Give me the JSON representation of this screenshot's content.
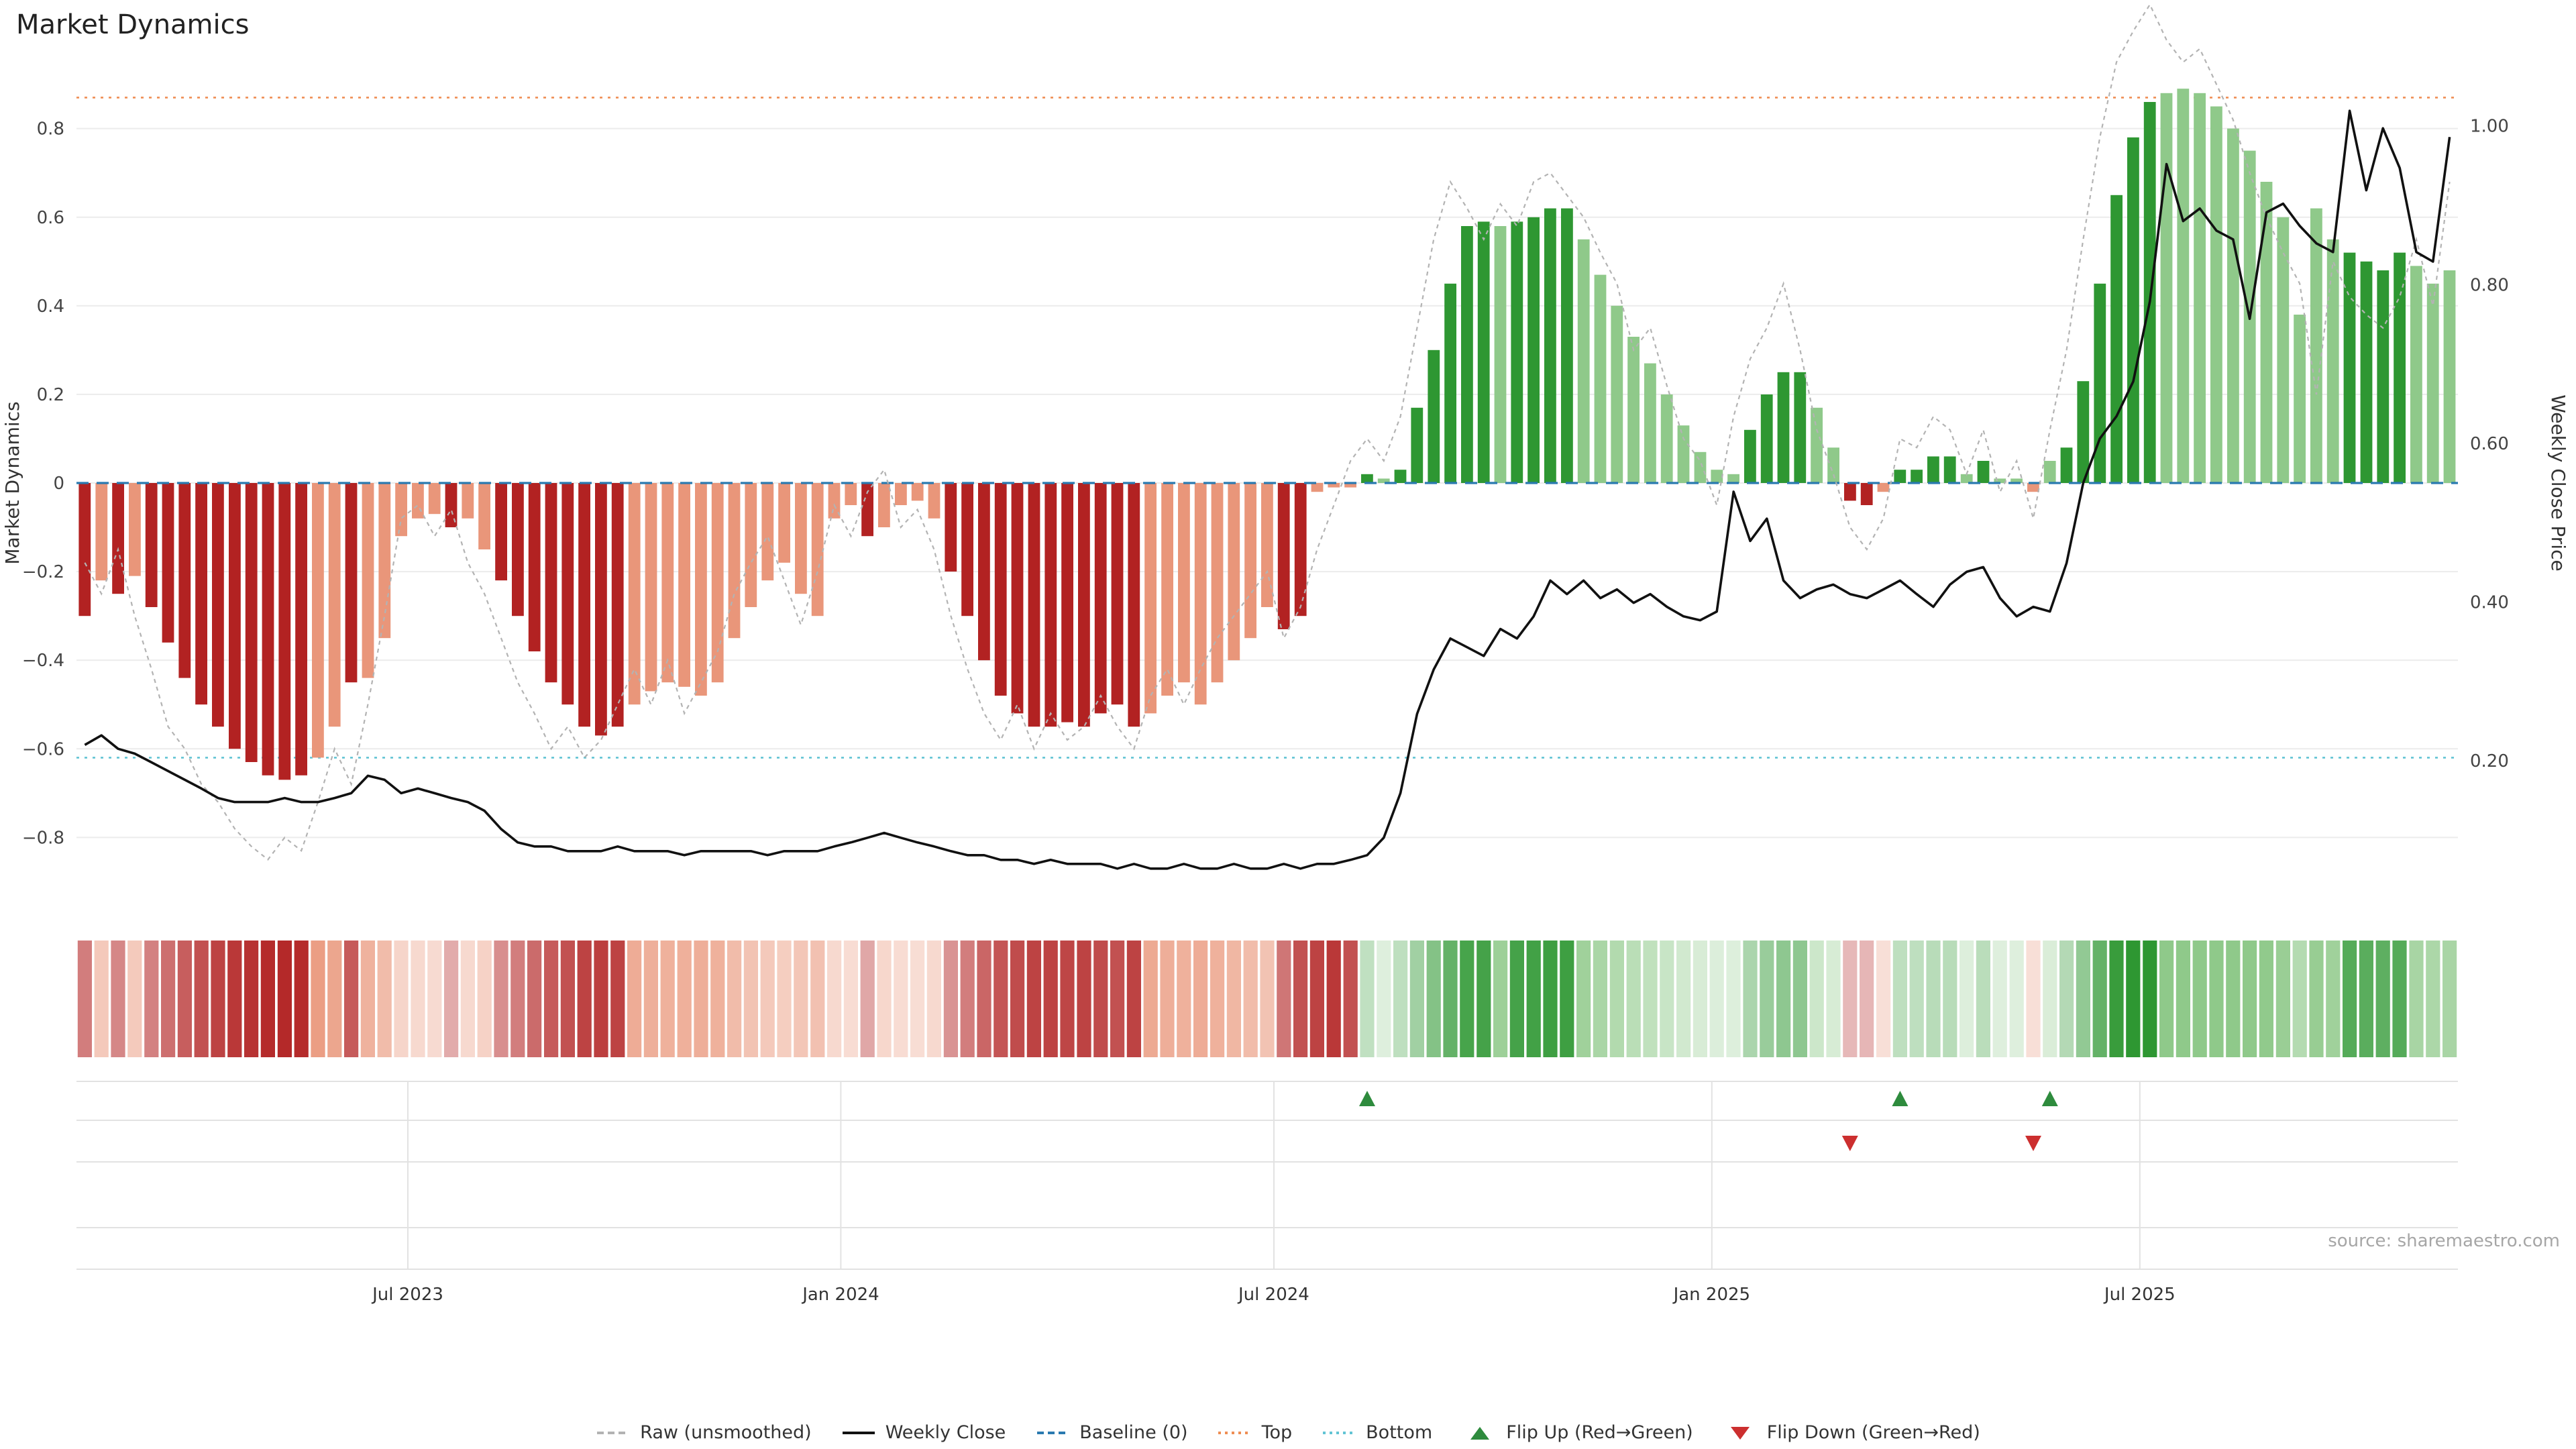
{
  "title": "Market Dynamics",
  "source": "source: sharemaestro.com",
  "colors": {
    "bar_dark_red": "#b22222",
    "bar_light_red": "#e9967a",
    "bar_dark_green": "#2e9732",
    "bar_light_green": "#8fc98a",
    "raw_line": "#b3b3b3",
    "close_line": "#111111",
    "baseline": "#2a7ab0",
    "top_line": "#ef8e54",
    "bottom_line": "#62c4d4",
    "flip_up": "#2e8b3d",
    "flip_down": "#cc2f2f",
    "grid": "#ececec",
    "panel_grid": "#e2e2e2",
    "source_text": "#a6a6a6"
  },
  "chart_data": {
    "type": "bar+line",
    "x_unit": "week",
    "weeks": 143,
    "x_ticks": [
      {
        "i": 19.4,
        "label": "Jul 2023"
      },
      {
        "i": 45.4,
        "label": "Jan 2024"
      },
      {
        "i": 71.4,
        "label": "Jul 2024"
      },
      {
        "i": 97.7,
        "label": "Jan 2025"
      },
      {
        "i": 123.4,
        "label": "Jul 2025"
      }
    ],
    "left_axis": {
      "label": "Market Dynamics",
      "range": [
        -0.96,
        0.96
      ],
      "ticks": [
        {
          "v": 0.8,
          "label": "0.8"
        },
        {
          "v": 0.6,
          "label": "0.6"
        },
        {
          "v": 0.4,
          "label": "0.4"
        },
        {
          "v": 0.2,
          "label": "0.2"
        },
        {
          "v": 0.0,
          "label": "0"
        },
        {
          "v": -0.2,
          "label": "−0.2"
        },
        {
          "v": -0.4,
          "label": "−0.4"
        },
        {
          "v": -0.6,
          "label": "−0.6"
        },
        {
          "v": -0.8,
          "label": "−0.8"
        }
      ]
    },
    "right_axis": {
      "label": "Weekly Close Price",
      "range": [
        0.014,
        1.086
      ],
      "ticks": [
        {
          "v": 0.2,
          "label": "0.20"
        },
        {
          "v": 0.4,
          "label": "0.40"
        },
        {
          "v": 0.6,
          "label": "0.60"
        },
        {
          "v": 0.8,
          "label": "0.80"
        },
        {
          "v": 1.0,
          "label": "1.00"
        }
      ]
    },
    "reference_lines": {
      "baseline": 0,
      "top": 0.87,
      "bottom": -0.62
    },
    "series": [
      {
        "name": "Market Dynamics (smoothed bars)",
        "type": "bar",
        "axis": "left",
        "values": [
          -0.3,
          -0.22,
          -0.25,
          -0.21,
          -0.28,
          -0.36,
          -0.44,
          -0.5,
          -0.55,
          -0.6,
          -0.63,
          -0.66,
          -0.67,
          -0.66,
          -0.62,
          -0.55,
          -0.45,
          -0.44,
          -0.35,
          -0.12,
          -0.08,
          -0.07,
          -0.1,
          -0.08,
          -0.15,
          -0.22,
          -0.3,
          -0.38,
          -0.45,
          -0.5,
          -0.55,
          -0.57,
          -0.55,
          -0.5,
          -0.47,
          -0.45,
          -0.46,
          -0.48,
          -0.45,
          -0.35,
          -0.28,
          -0.22,
          -0.18,
          -0.25,
          -0.3,
          -0.08,
          -0.05,
          -0.12,
          -0.1,
          -0.05,
          -0.04,
          -0.08,
          -0.2,
          -0.3,
          -0.4,
          -0.48,
          -0.52,
          -0.55,
          -0.55,
          -0.54,
          -0.55,
          -0.52,
          -0.5,
          -0.55,
          -0.52,
          -0.48,
          -0.45,
          -0.5,
          -0.45,
          -0.4,
          -0.35,
          -0.28,
          -0.33,
          -0.3,
          -0.02,
          -0.01,
          -0.01,
          0.02,
          0.01,
          0.03,
          0.17,
          0.3,
          0.45,
          0.58,
          0.59,
          0.58,
          0.59,
          0.6,
          0.62,
          0.62,
          0.55,
          0.47,
          0.4,
          0.33,
          0.27,
          0.2,
          0.13,
          0.07,
          0.03,
          0.02,
          0.12,
          0.2,
          0.25,
          0.25,
          0.17,
          0.08,
          -0.04,
          -0.05,
          -0.02,
          0.03,
          0.03,
          0.06,
          0.06,
          0.02,
          0.05,
          0.01,
          0.01,
          -0.02,
          0.05,
          0.08,
          0.23,
          0.45,
          0.65,
          0.78,
          0.86,
          0.88,
          0.89,
          0.88,
          0.85,
          0.8,
          0.75,
          0.68,
          0.6,
          0.38,
          0.62,
          0.55,
          0.52,
          0.5,
          0.48,
          0.52,
          0.49,
          0.45,
          0.48
        ],
        "shade": [
          1,
          0,
          1,
          0,
          1,
          1,
          1,
          1,
          1,
          1,
          1,
          1,
          1,
          1,
          0,
          0,
          1,
          0,
          0,
          0,
          0,
          0,
          1,
          0,
          0,
          1,
          1,
          1,
          1,
          1,
          1,
          1,
          1,
          0,
          0,
          0,
          0,
          0,
          0,
          0,
          0,
          0,
          0,
          0,
          0,
          0,
          0,
          1,
          0,
          0,
          0,
          0,
          1,
          1,
          1,
          1,
          1,
          1,
          1,
          1,
          1,
          1,
          1,
          1,
          0,
          0,
          0,
          0,
          0,
          0,
          0,
          0,
          1,
          1,
          0,
          0,
          0,
          1,
          0,
          1,
          1,
          1,
          1,
          1,
          1,
          0,
          1,
          1,
          1,
          1,
          0,
          0,
          0,
          0,
          0,
          0,
          0,
          0,
          0,
          0,
          1,
          1,
          1,
          1,
          0,
          0,
          1,
          1,
          0,
          1,
          1,
          1,
          1,
          0,
          1,
          0,
          0,
          0,
          0,
          1,
          1,
          1,
          1,
          1,
          1,
          0,
          0,
          0,
          0,
          0,
          0,
          0,
          0,
          0,
          0,
          0,
          1,
          1,
          1,
          1,
          0,
          0,
          0
        ]
      },
      {
        "name": "Raw (unsmoothed)",
        "type": "line",
        "style": "dashed",
        "axis": "left",
        "values": [
          -0.18,
          -0.25,
          -0.15,
          -0.3,
          -0.42,
          -0.55,
          -0.6,
          -0.68,
          -0.72,
          -0.78,
          -0.82,
          -0.85,
          -0.8,
          -0.83,
          -0.72,
          -0.6,
          -0.68,
          -0.5,
          -0.3,
          -0.08,
          -0.05,
          -0.12,
          -0.06,
          -0.18,
          -0.25,
          -0.35,
          -0.45,
          -0.52,
          -0.6,
          -0.55,
          -0.62,
          -0.58,
          -0.5,
          -0.42,
          -0.5,
          -0.4,
          -0.52,
          -0.45,
          -0.38,
          -0.25,
          -0.18,
          -0.12,
          -0.22,
          -0.32,
          -0.2,
          -0.05,
          -0.12,
          -0.02,
          0.03,
          -0.1,
          -0.06,
          -0.15,
          -0.3,
          -0.42,
          -0.52,
          -0.58,
          -0.5,
          -0.6,
          -0.52,
          -0.58,
          -0.55,
          -0.48,
          -0.55,
          -0.6,
          -0.48,
          -0.42,
          -0.5,
          -0.42,
          -0.35,
          -0.3,
          -0.25,
          -0.2,
          -0.35,
          -0.28,
          -0.15,
          -0.05,
          0.05,
          0.1,
          0.05,
          0.15,
          0.35,
          0.55,
          0.68,
          0.62,
          0.55,
          0.63,
          0.58,
          0.68,
          0.7,
          0.65,
          0.6,
          0.52,
          0.45,
          0.3,
          0.35,
          0.22,
          0.1,
          0.05,
          -0.05,
          0.15,
          0.28,
          0.35,
          0.45,
          0.3,
          0.12,
          0.02,
          -0.1,
          -0.15,
          -0.08,
          0.1,
          0.08,
          0.15,
          0.12,
          0.02,
          0.12,
          -0.02,
          0.05,
          -0.08,
          0.12,
          0.3,
          0.55,
          0.78,
          0.95,
          1.02,
          1.08,
          1.0,
          0.95,
          0.98,
          0.9,
          0.82,
          0.7,
          0.6,
          0.52,
          0.45,
          0.2,
          0.5,
          0.42,
          0.38,
          0.35,
          0.42,
          0.55,
          0.4,
          0.68
        ]
      },
      {
        "name": "Weekly Close",
        "type": "line",
        "axis": "right",
        "values": [
          0.22,
          0.232,
          0.215,
          0.209,
          0.198,
          0.187,
          0.176,
          0.165,
          0.153,
          0.148,
          0.148,
          0.148,
          0.153,
          0.148,
          0.148,
          0.153,
          0.159,
          0.181,
          0.176,
          0.159,
          0.165,
          0.159,
          0.153,
          0.148,
          0.137,
          0.114,
          0.097,
          0.092,
          0.092,
          0.086,
          0.086,
          0.086,
          0.092,
          0.086,
          0.086,
          0.086,
          0.081,
          0.086,
          0.086,
          0.086,
          0.086,
          0.081,
          0.086,
          0.086,
          0.086,
          0.092,
          0.097,
          0.103,
          0.109,
          0.103,
          0.097,
          0.092,
          0.086,
          0.081,
          0.081,
          0.075,
          0.075,
          0.07,
          0.075,
          0.07,
          0.07,
          0.07,
          0.064,
          0.07,
          0.064,
          0.064,
          0.07,
          0.064,
          0.064,
          0.07,
          0.064,
          0.064,
          0.07,
          0.064,
          0.07,
          0.07,
          0.075,
          0.081,
          0.103,
          0.159,
          0.259,
          0.315,
          0.354,
          0.343,
          0.332,
          0.366,
          0.354,
          0.382,
          0.427,
          0.41,
          0.427,
          0.405,
          0.416,
          0.399,
          0.41,
          0.394,
          0.382,
          0.377,
          0.388,
          0.539,
          0.477,
          0.505,
          0.427,
          0.405,
          0.416,
          0.422,
          0.41,
          0.405,
          0.416,
          0.427,
          0.41,
          0.394,
          0.422,
          0.438,
          0.444,
          0.405,
          0.382,
          0.394,
          0.388,
          0.449,
          0.55,
          0.606,
          0.634,
          0.678,
          0.779,
          0.952,
          0.88,
          0.896,
          0.868,
          0.857,
          0.757,
          0.891,
          0.902,
          0.874,
          0.852,
          0.841,
          1.019,
          0.919,
          0.997,
          0.947,
          0.841,
          0.829,
          0.986
        ]
      }
    ],
    "flip_up_weeks": [
      77,
      109,
      118
    ],
    "flip_down_weeks": [
      106,
      117
    ],
    "strip_override": {
      "73": -0.5,
      "74": -0.55,
      "75": -0.6,
      "76": -0.5
    }
  },
  "legend": {
    "items": [
      {
        "key": "raw",
        "label": "Raw (unsmoothed)",
        "swatch": "dashed-line",
        "color": "#b3b3b3"
      },
      {
        "key": "weekly-close",
        "label": "Weekly Close",
        "swatch": "solid-line",
        "color": "#111111"
      },
      {
        "key": "baseline",
        "label": "Baseline (0)",
        "swatch": "dashed-line",
        "color": "#2a7ab0"
      },
      {
        "key": "top",
        "label": "Top",
        "swatch": "dotted-line",
        "color": "#ef8e54"
      },
      {
        "key": "bottom",
        "label": "Bottom",
        "swatch": "dotted-line",
        "color": "#62c4d4"
      },
      {
        "key": "flip-up",
        "label": "Flip Up (Red→Green)",
        "swatch": "triangle-up",
        "color": "#2e8b3d"
      },
      {
        "key": "flip-down",
        "label": "Flip Down (Green→Red)",
        "swatch": "triangle-down",
        "color": "#cc2f2f"
      }
    ]
  }
}
